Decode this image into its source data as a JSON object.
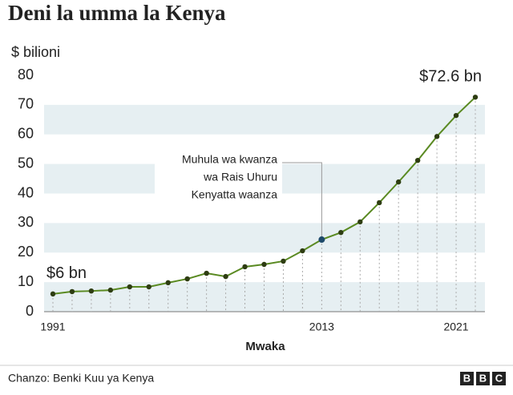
{
  "chart_data": {
    "type": "line",
    "title": "Deni la umma la Kenya",
    "ylabel": "$ bilioni",
    "xlabel": "Mwaka",
    "categories": [
      "1991",
      null,
      null,
      null,
      null,
      null,
      null,
      null,
      null,
      null,
      null,
      null,
      null,
      null,
      "2013",
      null,
      null,
      null,
      null,
      null,
      null,
      "2021",
      null
    ],
    "series": [
      {
        "name": null,
        "color": "#5a8a22",
        "marker_color": "#2e3d12",
        "values": [
          6,
          6.8,
          7.0,
          7.3,
          8.4,
          8.4,
          9.8,
          11.1,
          13.0,
          11.9,
          15.2,
          16.0,
          17.1,
          20.6,
          24.4,
          26.8,
          30.4,
          36.9,
          43.9,
          51.2,
          59.3,
          66.4,
          72.6
        ],
        "value_labels": [
          "$6 bn",
          null,
          null,
          null,
          null,
          null,
          null,
          null,
          null,
          null,
          null,
          null,
          null,
          null,
          null,
          null,
          null,
          null,
          null,
          null,
          null,
          null,
          "$72.6 bn"
        ]
      }
    ],
    "ylim": [
      0,
      80
    ],
    "yticks": [
      0,
      10,
      20,
      30,
      40,
      50,
      60,
      70,
      80
    ],
    "grid": true,
    "band_color": "#e6eff2",
    "annotation": {
      "lines": [
        "Muhula wa kwanza",
        "wa Rais Uhuru",
        "Kenyatta waanza"
      ],
      "x": "2013",
      "color": "#1d4a6a"
    },
    "source": "Chanzo: Benki Kuu ya Kenya",
    "logo": [
      "B",
      "B",
      "C"
    ]
  }
}
